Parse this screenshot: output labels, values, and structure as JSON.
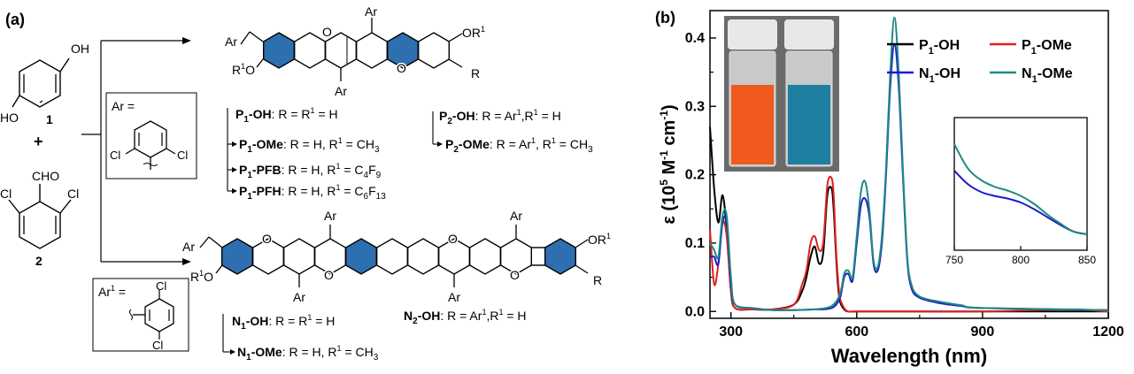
{
  "panel_a": {
    "label": "(a)",
    "reactant1": {
      "oh_top": "OH",
      "ho_bottom": "HO",
      "number": "1"
    },
    "plus": "+",
    "reactant2": {
      "cho": "CHO",
      "cl_left": "Cl",
      "cl_right": "Cl",
      "number": "2"
    },
    "ar_box": {
      "title": "Ar =",
      "cl_left": "Cl",
      "cl_right": "Cl"
    },
    "ar1_box": {
      "title": "Ar",
      "sup": "1",
      "eq": " =",
      "cl_top": "Cl",
      "cl_bottom": "Cl"
    },
    "top_structure": {
      "ar_top": "Ar",
      "ar_bottom": "Ar",
      "ar_ch2": "Ar",
      "or1_right": "OR",
      "or1_right_sup": "1",
      "r1o_left": "R",
      "r1o_left_sup": "1",
      "r1o_left_o": "O",
      "r_right": "R",
      "o_top": "O",
      "o_bottom": "O"
    },
    "bottom_structure": {
      "ar_top1": "Ar",
      "ar_top2": "Ar",
      "ar_bot1": "Ar",
      "ar_bot2": "Ar",
      "ar_ch2": "Ar",
      "or1_right": "OR",
      "or1_right_sup": "1",
      "r1o_left": "R",
      "r1o_left_sup": "1",
      "r1o_left_o": "O",
      "r_right": "R",
      "o1": "O",
      "o2": "O",
      "o3": "O",
      "o4": "O"
    },
    "compounds": {
      "p1oh": {
        "name": "P",
        "sub": "1",
        "suffix": "-OH",
        "desc": ": R = R",
        "desc_sup": "1",
        "desc_end": " = H"
      },
      "p1ome": {
        "name": "P",
        "sub": "1",
        "suffix": "-OMe",
        "desc": ": R = H, R",
        "desc_sup": "1",
        "desc_end": " = CH",
        "desc_sub": "3"
      },
      "p1pfb": {
        "name": "P",
        "sub": "1",
        "suffix": "-PFB",
        "desc": ": R = H, R",
        "desc_sup": "1",
        "desc_end": " = C",
        "desc_sub": "4",
        "desc_tail": "F",
        "desc_sub2": "9"
      },
      "p1pfh": {
        "name": "P",
        "sub": "1",
        "suffix": "-PFH",
        "desc": ": R = H, R",
        "desc_sup": "1",
        "desc_end": " = C",
        "desc_sub": "6",
        "desc_tail": "F",
        "desc_sub2": "13"
      },
      "p2oh": {
        "name": "P",
        "sub": "2",
        "suffix": "-OH",
        "desc": ": R = Ar",
        "desc_sup": "1",
        "desc_end": ",R",
        "desc_sup2": "1",
        "desc_tail": " = H"
      },
      "p2ome": {
        "name": "P",
        "sub": "2",
        "suffix": "-OMe",
        "desc": ": R = Ar",
        "desc_sup": "1",
        "desc_end": ", R",
        "desc_sup2": "1",
        "desc_tail": " = CH",
        "desc_sub": "3"
      },
      "n1oh": {
        "name": "N",
        "sub": "1",
        "suffix": "-OH",
        "desc": ": R = R",
        "desc_sup": "1",
        "desc_end": " = H"
      },
      "n1ome": {
        "name": "N",
        "sub": "1",
        "suffix": "-OMe",
        "desc": ": R = H, R",
        "desc_sup": "1",
        "desc_end": " = CH",
        "desc_sub": "3"
      },
      "n2oh": {
        "name": "N",
        "sub": "2",
        "suffix": "-OH",
        "desc": ": R = Ar",
        "desc_sup": "1",
        "desc_end": ",R",
        "desc_sup2": "1",
        "desc_tail": " = H"
      }
    },
    "colors": {
      "ring_fill": "#2e6fb0",
      "bond": "#000000"
    }
  },
  "panel_b": {
    "label": "(b)",
    "inset_photo_colors": {
      "left_vial": "#f05a1c",
      "right_vial": "#1f7fa0",
      "background": "#6b6b6b"
    }
  },
  "chart_data": {
    "type": "line",
    "xlabel": "Wavelength (nm)",
    "ylabel_parts": {
      "eps": "ε",
      "open": " (10",
      "sup5": "5",
      "m": " M",
      "sup_m": "-1",
      "cm": " cm",
      "sup_cm": "-1",
      "close": ")"
    },
    "xlim": [
      250,
      1200
    ],
    "ylim": [
      -0.01,
      0.44
    ],
    "xticks": [
      300,
      600,
      900,
      1200
    ],
    "yticks": [
      0.0,
      0.1,
      0.2,
      0.3,
      0.4
    ],
    "xtick_labels": [
      "300",
      "600",
      "900",
      "1200"
    ],
    "ytick_labels": [
      "0.0",
      "0.1",
      "0.2",
      "0.3",
      "0.4"
    ],
    "legend_position": "top-right",
    "series": [
      {
        "name": "P1-OH",
        "label_main": "P",
        "label_sub": "1",
        "label_suffix": "-OH",
        "color": "#000000",
        "x": [
          250,
          260,
          270,
          280,
          290,
          300,
          310,
          350,
          400,
          450,
          470,
          480,
          490,
          500,
          510,
          520,
          530,
          540,
          545,
          550,
          555,
          560,
          570,
          580,
          600,
          700,
          900,
          1200
        ],
        "y": [
          0.27,
          0.18,
          0.13,
          0.17,
          0.12,
          0.03,
          0.005,
          0.003,
          0.003,
          0.01,
          0.03,
          0.05,
          0.08,
          0.095,
          0.07,
          0.085,
          0.17,
          0.18,
          0.15,
          0.09,
          0.04,
          0.015,
          0.003,
          0.0,
          0.0,
          0.0,
          0.0,
          0.0
        ]
      },
      {
        "name": "P1-OMe",
        "label_main": "P",
        "label_sub": "1",
        "label_suffix": "-OMe",
        "color": "#e02020",
        "x": [
          250,
          260,
          270,
          280,
          290,
          300,
          310,
          350,
          400,
          450,
          470,
          480,
          490,
          500,
          510,
          520,
          530,
          540,
          545,
          550,
          555,
          560,
          570,
          580,
          600,
          700,
          900,
          1100,
          1200
        ],
        "y": [
          0.12,
          0.04,
          0.07,
          0.13,
          0.11,
          0.03,
          0.005,
          0.003,
          0.003,
          0.01,
          0.04,
          0.06,
          0.1,
          0.11,
          0.09,
          0.1,
          0.185,
          0.195,
          0.17,
          0.1,
          0.05,
          0.02,
          0.005,
          0.0,
          0.0,
          0.0,
          0.0,
          0.003,
          0.0
        ]
      },
      {
        "name": "N1-OH",
        "label_main": "N",
        "label_sub": "1",
        "label_suffix": "-OH",
        "color": "#1a1ad0",
        "x": [
          250,
          260,
          270,
          280,
          290,
          300,
          310,
          350,
          400,
          450,
          500,
          540,
          560,
          570,
          580,
          590,
          600,
          610,
          620,
          630,
          640,
          650,
          660,
          670,
          680,
          690,
          700,
          710,
          720,
          730,
          750,
          800,
          850,
          900,
          1200
        ],
        "y": [
          0.08,
          0.08,
          0.07,
          0.13,
          0.13,
          0.04,
          0.01,
          0.005,
          0.002,
          0.002,
          0.003,
          0.005,
          0.02,
          0.05,
          0.055,
          0.045,
          0.1,
          0.155,
          0.165,
          0.14,
          0.07,
          0.06,
          0.1,
          0.2,
          0.33,
          0.39,
          0.33,
          0.2,
          0.08,
          0.035,
          0.02,
          0.012,
          0.008,
          0.005,
          0.002
        ]
      },
      {
        "name": "N1-OMe",
        "label_main": "N",
        "label_sub": "1",
        "label_suffix": "-OMe",
        "color": "#1e8a80",
        "x": [
          250,
          260,
          270,
          280,
          290,
          300,
          310,
          350,
          400,
          450,
          500,
          540,
          560,
          570,
          580,
          590,
          600,
          610,
          620,
          630,
          640,
          650,
          660,
          670,
          680,
          690,
          700,
          710,
          720,
          730,
          750,
          800,
          850,
          900,
          1200
        ],
        "y": [
          0.1,
          0.09,
          0.08,
          0.14,
          0.14,
          0.05,
          0.01,
          0.005,
          0.002,
          0.002,
          0.003,
          0.008,
          0.025,
          0.055,
          0.06,
          0.05,
          0.11,
          0.175,
          0.19,
          0.15,
          0.075,
          0.065,
          0.11,
          0.21,
          0.35,
          0.43,
          0.35,
          0.21,
          0.085,
          0.04,
          0.022,
          0.014,
          0.009,
          0.005,
          0.002
        ]
      }
    ],
    "inset": {
      "xlim": [
        750,
        850
      ],
      "xticks": [
        750,
        800,
        850
      ],
      "xtick_labels": [
        "750",
        "800",
        "850"
      ],
      "series": [
        {
          "name": "N1-OH",
          "color": "#1a1ad0",
          "x": [
            750,
            760,
            770,
            780,
            790,
            800,
            810,
            820,
            830,
            840,
            850
          ],
          "y": [
            0.6,
            0.5,
            0.44,
            0.41,
            0.39,
            0.36,
            0.31,
            0.25,
            0.19,
            0.14,
            0.12
          ]
        },
        {
          "name": "N1-OMe",
          "color": "#1e8a80",
          "x": [
            750,
            760,
            770,
            780,
            790,
            800,
            810,
            820,
            830,
            840,
            850
          ],
          "y": [
            0.8,
            0.62,
            0.53,
            0.48,
            0.45,
            0.41,
            0.35,
            0.27,
            0.2,
            0.14,
            0.12
          ]
        }
      ]
    }
  }
}
